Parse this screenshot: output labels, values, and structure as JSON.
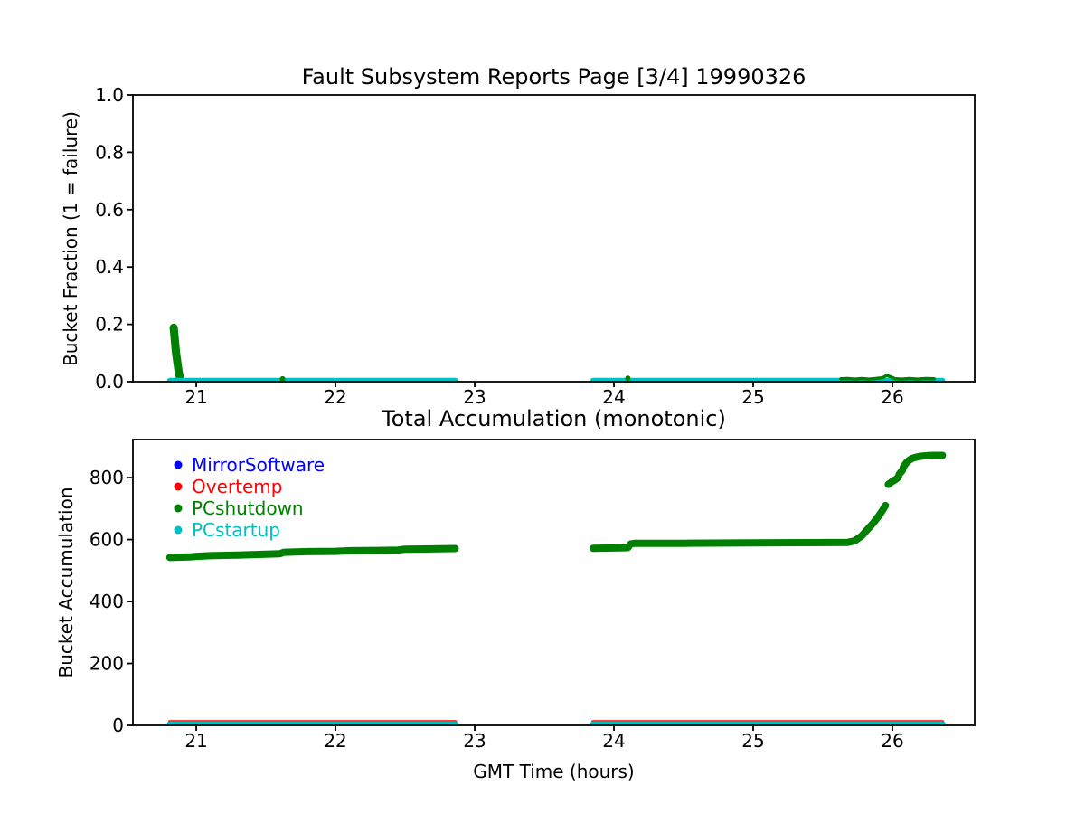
{
  "figure": {
    "background": "#ffffff",
    "text_color": "#000000",
    "frame_color": "#000000"
  },
  "chart_data": [
    {
      "type": "line",
      "title": "Fault Subsystem Reports Page [3/4] 19990326",
      "xlabel": "",
      "ylabel": "Bucket Fraction (1 = failure)",
      "xlim": [
        20.545,
        26.591
      ],
      "ylim": [
        0,
        1.0
      ],
      "grid": false,
      "xtick_values": [
        21,
        22,
        23,
        24,
        25,
        26
      ],
      "xtick_labels": [
        "21",
        "22",
        "23",
        "24",
        "25",
        "26"
      ],
      "ytick_values": [
        0.0,
        0.2,
        0.4,
        0.6,
        0.8,
        1.0
      ],
      "ytick_labels": [
        "0.0",
        "0.2",
        "0.4",
        "0.6",
        "0.8",
        "1.0"
      ],
      "series": [
        {
          "name": "MirrorSoftware",
          "color": "#0000ff",
          "linewidth": 5,
          "segments": [
            {
              "pts": [
                [
                  20.81,
                  0.004
                ],
                [
                  22.86,
                  0.004
                ]
              ]
            },
            {
              "pts": [
                [
                  23.85,
                  0.004
                ],
                [
                  26.36,
                  0.004
                ]
              ]
            }
          ]
        },
        {
          "name": "Overtemp",
          "color": "#ff0000",
          "linewidth": 5,
          "segments": [
            {
              "pts": [
                [
                  20.81,
                  0.004
                ],
                [
                  22.86,
                  0.004
                ]
              ]
            },
            {
              "pts": [
                [
                  23.85,
                  0.004
                ],
                [
                  26.36,
                  0.004
                ]
              ]
            }
          ]
        },
        {
          "name": "PCshutdown",
          "color": "#008000",
          "linewidth": 9,
          "segments": [
            {
              "pts": [
                [
                  20.838,
                  0.188
                ],
                [
                  20.855,
                  0.1
                ],
                [
                  20.875,
                  0.03
                ],
                [
                  20.888,
                  0.008
                ]
              ]
            }
          ]
        },
        {
          "name": "PCstartup",
          "color": "#00bfbf",
          "linewidth": 6,
          "segments": [
            {
              "pts": [
                [
                  20.81,
                  0.004
                ],
                [
                  22.86,
                  0.004
                ]
              ]
            },
            {
              "pts": [
                [
                  23.85,
                  0.004
                ],
                [
                  26.36,
                  0.004
                ]
              ]
            }
          ]
        },
        {
          "name": "PCshutdown",
          "color": "#008000",
          "linewidth": 3.5,
          "segments": [
            {
              "pts": [
                [
                  21.62,
                  0.01
                ]
              ],
              "lw": 6
            },
            {
              "pts": [
                [
                  24.1,
                  0.012
                ]
              ],
              "lw": 6
            },
            {
              "pts": [
                [
                  25.63,
                  0.01
                ],
                [
                  25.68,
                  0.011
                ],
                [
                  25.73,
                  0.009
                ],
                [
                  25.78,
                  0.011
                ],
                [
                  25.83,
                  0.009
                ],
                [
                  25.88,
                  0.011
                ],
                [
                  25.93,
                  0.014
                ],
                [
                  25.96,
                  0.022
                ],
                [
                  25.99,
                  0.016
                ],
                [
                  26.02,
                  0.01
                ],
                [
                  26.07,
                  0.009
                ],
                [
                  26.12,
                  0.011
                ],
                [
                  26.18,
                  0.009
                ],
                [
                  26.24,
                  0.011
                ],
                [
                  26.3,
                  0.01
                ]
              ]
            }
          ]
        }
      ]
    },
    {
      "type": "line",
      "title": "Total Accumulation (monotonic)",
      "xlabel": "GMT Time (hours)",
      "ylabel": "Bucket Accumulation",
      "xlim": [
        20.545,
        26.591
      ],
      "ylim": [
        0,
        923
      ],
      "grid": false,
      "xtick_values": [
        21,
        22,
        23,
        24,
        25,
        26
      ],
      "xtick_labels": [
        "21",
        "22",
        "23",
        "24",
        "25",
        "26"
      ],
      "ytick_values": [
        0,
        200,
        400,
        600,
        800
      ],
      "ytick_labels": [
        "0",
        "200",
        "400",
        "600",
        "800"
      ],
      "legend": {
        "position": "upper-left",
        "frame": false,
        "entries": [
          {
            "label": "MirrorSoftware",
            "color": "#0000ff"
          },
          {
            "label": "Overtemp",
            "color": "#ff0000"
          },
          {
            "label": "PCshutdown",
            "color": "#008000"
          },
          {
            "label": "PCstartup",
            "color": "#00bfbf"
          }
        ]
      },
      "series": [
        {
          "name": "MirrorSoftware",
          "color": "#0000ff",
          "linewidth": 5,
          "segments": [
            {
              "pts": [
                [
                  20.81,
                  2
                ],
                [
                  22.86,
                  2
                ]
              ]
            },
            {
              "pts": [
                [
                  23.85,
                  2
                ],
                [
                  26.36,
                  2
                ]
              ]
            }
          ]
        },
        {
          "name": "Overtemp",
          "color": "#ff0000",
          "linewidth": 4,
          "segments": [
            {
              "pts": [
                [
                  20.81,
                  11
                ],
                [
                  22.86,
                  11
                ]
              ]
            },
            {
              "pts": [
                [
                  23.85,
                  11
                ],
                [
                  26.36,
                  11
                ]
              ]
            }
          ]
        },
        {
          "name": "PCshutdown",
          "color": "#008000",
          "linewidth": 8,
          "segments": [
            {
              "pts": [
                [
                  20.81,
                  542
                ],
                [
                  20.95,
                  544
                ],
                [
                  21.0,
                  546
                ],
                [
                  21.1,
                  548
                ],
                [
                  21.3,
                  550
                ],
                [
                  21.45,
                  552
                ],
                [
                  21.6,
                  554
                ],
                [
                  21.63,
                  559
                ],
                [
                  21.8,
                  561
                ],
                [
                  22.0,
                  562
                ],
                [
                  22.1,
                  564
                ],
                [
                  22.3,
                  565
                ],
                [
                  22.45,
                  566
                ],
                [
                  22.5,
                  569
                ],
                [
                  22.7,
                  570
                ],
                [
                  22.86,
                  571
                ]
              ]
            },
            {
              "pts": [
                [
                  23.85,
                  572
                ],
                [
                  24.05,
                  573
                ],
                [
                  24.1,
                  574
                ],
                [
                  24.12,
                  586
                ],
                [
                  24.15,
                  588
                ],
                [
                  24.5,
                  588
                ],
                [
                  25.0,
                  589
                ],
                [
                  25.4,
                  590
                ],
                [
                  25.68,
                  591
                ],
                [
                  25.73,
                  596
                ],
                [
                  25.78,
                  612
                ],
                [
                  25.82,
                  632
                ],
                [
                  25.86,
                  652
                ],
                [
                  25.9,
                  675
                ],
                [
                  25.93,
                  695
                ],
                [
                  25.95,
                  710
                ]
              ]
            },
            {
              "pts": [
                [
                  25.97,
                  778
                ],
                [
                  26.0,
                  788
                ],
                [
                  26.02,
                  793
                ],
                [
                  26.04,
                  800
                ],
                [
                  26.05,
                  812
                ],
                [
                  26.07,
                  822
                ],
                [
                  26.08,
                  835
                ],
                [
                  26.1,
                  848
                ],
                [
                  26.12,
                  856
                ],
                [
                  26.14,
                  862
                ],
                [
                  26.17,
                  866
                ],
                [
                  26.2,
                  869
                ],
                [
                  26.25,
                  871
                ],
                [
                  26.3,
                  872
                ],
                [
                  26.36,
                  872
                ]
              ]
            }
          ]
        },
        {
          "name": "PCstartup",
          "color": "#00bfbf",
          "linewidth": 6.5,
          "segments": [
            {
              "pts": [
                [
                  20.81,
                  4
                ],
                [
                  22.86,
                  4
                ]
              ]
            },
            {
              "pts": [
                [
                  23.85,
                  4
                ],
                [
                  26.36,
                  4
                ]
              ]
            }
          ]
        }
      ]
    }
  ]
}
